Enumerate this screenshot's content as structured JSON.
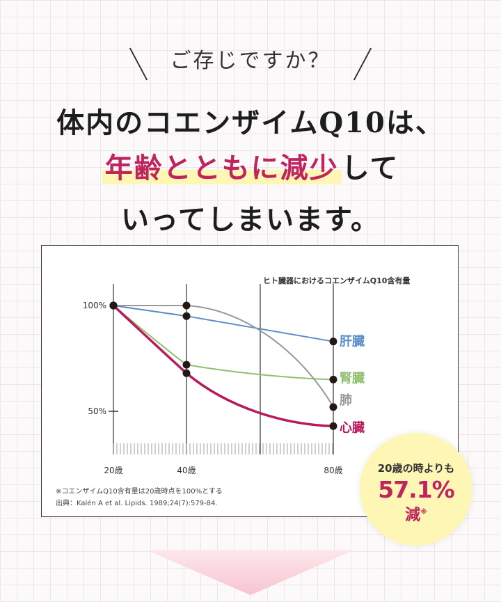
{
  "intro": {
    "text": "ご存じですか？"
  },
  "headline": {
    "line1": "体内のコエンザイムQ10は、",
    "line2_emph": "年齢とともに減少",
    "line2_rest": "して",
    "line3": "いってしまいます。"
  },
  "chart": {
    "title": "ヒト臓器におけるコエンザイムQ10含有量",
    "y_ticks": [
      "100%",
      "50%"
    ],
    "x_ticks": [
      "20歳",
      "40歳",
      "80歳"
    ],
    "notes": [
      "※コエンザイムQ10含有量は20歳時点を100%とする",
      "出典：Kalén A et al. Lipids. 1989;24(7):579-84."
    ]
  },
  "chart_data": {
    "type": "line",
    "title": "ヒト臓器におけるコエンザイムQ10含有量",
    "x": [
      20,
      40,
      80
    ],
    "x_tick_labels": [
      "20歳",
      "40歳",
      "80歳"
    ],
    "y_tick_labels": [
      "100%",
      "50%"
    ],
    "ylim": [
      35,
      100
    ],
    "series": [
      {
        "name": "肝臓",
        "color": "#5b8dc9",
        "values": [
          100,
          95,
          83
        ]
      },
      {
        "name": "腎臓",
        "color": "#8fbf6f",
        "values": [
          100,
          72,
          65
        ]
      },
      {
        "name": "肺",
        "color": "#999999",
        "values": [
          100,
          100,
          52
        ]
      },
      {
        "name": "心臓",
        "color": "#b81a5a",
        "values": [
          100,
          68,
          43
        ]
      }
    ]
  },
  "badge": {
    "line1": "20歳の時よりも",
    "value": "57.1%",
    "word": "減",
    "mark": "※"
  },
  "colors": {
    "accent": "#c0245f",
    "highlight": "#fdf6b5",
    "arrow": "#f7c4d0"
  }
}
